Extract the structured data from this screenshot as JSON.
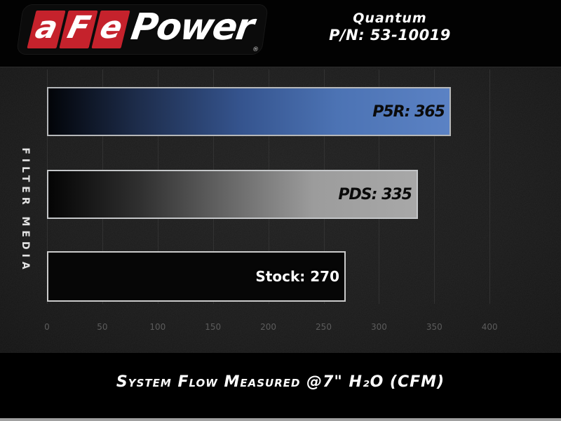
{
  "header": {
    "logo": {
      "tiles": [
        "a",
        "F",
        "e"
      ],
      "power_text": "Power",
      "registered": "®",
      "red": "#c5222c"
    },
    "product": {
      "name": "Quantum",
      "part_number": "P/N: 53-10019"
    }
  },
  "chart_data": {
    "type": "bar",
    "orientation": "horizontal",
    "title": "",
    "categories": [
      "P5R",
      "PDS",
      "Stock"
    ],
    "values": [
      365,
      335,
      270
    ],
    "series": [
      {
        "name": "P5R",
        "value": 365,
        "label": "P5R: 365",
        "label_color": "#0b0b0b",
        "label_italic": true,
        "fill": {
          "type": "gradient",
          "stops": [
            "#020408",
            "#1d2c4a",
            "#35548e",
            "#4c73b4",
            "#5b82c4"
          ],
          "positions": [
            0,
            22,
            48,
            72,
            100
          ]
        },
        "border_color": "#b5b7b9"
      },
      {
        "name": "PDS",
        "value": 335,
        "label": "PDS: 335",
        "label_color": "#0b0b0b",
        "label_italic": true,
        "fill": {
          "type": "gradient",
          "stops": [
            "#040404",
            "#303030",
            "#6e6e6e",
            "#9c9c9c",
            "#a8a8a8"
          ],
          "positions": [
            0,
            25,
            52,
            72,
            100
          ]
        },
        "border_color": "#c4c6c8"
      },
      {
        "name": "Stock",
        "value": 270,
        "label": "Stock: 270",
        "label_color": "#ffffff",
        "label_italic": false,
        "fill": {
          "type": "solid",
          "color": "#060606"
        },
        "border_color": "#cbcbcb"
      }
    ],
    "x_ticks": [
      0,
      50,
      100,
      150,
      200,
      250,
      300,
      350,
      400
    ],
    "xlim": [
      0,
      400
    ],
    "grid": true,
    "legend": false,
    "ylabel": "FILTER MEDIA",
    "xlabel": "System Flow Measured @7\" H₂O (CFM)",
    "tick_color": "#5c5c5c",
    "grid_color": "#323232"
  },
  "footer": {
    "caption": "System Flow Measured @7\" H₂O (CFM)"
  }
}
